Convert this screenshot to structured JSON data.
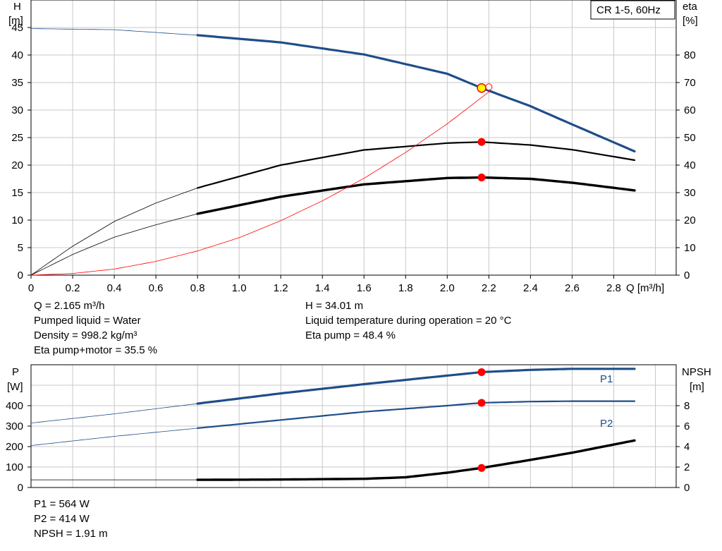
{
  "top_chart": {
    "title": "CR 1-5, 60Hz",
    "ylabel_left": [
      "H",
      "[m]"
    ],
    "ylabel_right": [
      "eta",
      "[%]"
    ],
    "xlabel": "Q [m³/h]",
    "x_ticks": [
      "0",
      "0.2",
      "0.4",
      "0.6",
      "0.8",
      "1.0",
      "1.2",
      "1.4",
      "1.6",
      "1.8",
      "2.0",
      "2.2",
      "2.4",
      "2.6",
      "2.8"
    ],
    "y_ticks_left": [
      "0",
      "5",
      "10",
      "15",
      "20",
      "25",
      "30",
      "35",
      "40",
      "45"
    ],
    "y_ticks_right": [
      "0",
      "10",
      "20",
      "30",
      "40",
      "50",
      "60",
      "70",
      "80"
    ]
  },
  "top_info": {
    "left": [
      "Q = 2.165 m³/h",
      "Pumped liquid = Water",
      "Density = 998.2 kg/m³",
      "Eta pump+motor = 35.5 %"
    ],
    "right": [
      "H = 34.01 m",
      "Liquid temperature during operation = 20 °C",
      "Eta pump = 48.4 %"
    ]
  },
  "bottom_chart": {
    "ylabel_left": [
      "P",
      "[W]"
    ],
    "ylabel_right": [
      "NPSH",
      "[m]"
    ],
    "y_ticks_left": [
      "0",
      "100",
      "200",
      "300",
      "400"
    ],
    "y_ticks_right": [
      "0",
      "2",
      "4",
      "6",
      "8"
    ],
    "series_labels": [
      "P1",
      "P2"
    ]
  },
  "bottom_info": [
    "P1 = 564 W",
    "P2 = 414 W",
    "NPSH = 1.91 m"
  ],
  "colors": {
    "blue": "#1f4e89",
    "black": "#000000",
    "red": "#ff0000",
    "grid": "#c8c8c8",
    "marker_yellow": "#ffff00"
  },
  "chart_data": [
    {
      "type": "line",
      "title": "CR 1-5, 60Hz",
      "xlabel": "Q [m³/h]",
      "xlim": [
        0,
        3.1
      ],
      "ylim_left": [
        0,
        50
      ],
      "ylim_right": [
        0,
        100
      ],
      "grid": true,
      "duty_point": {
        "x": 2.165,
        "H": 34.01,
        "eta_pump": 48.4,
        "eta_pump_motor": 35.5
      },
      "series": [
        {
          "id": "H",
          "axis": "left",
          "color": "blue",
          "operating_range": [
            0.8,
            2.9
          ],
          "x": [
            0,
            0.4,
            0.8,
            1.2,
            1.6,
            2.0,
            2.165,
            2.4,
            2.6,
            2.9
          ],
          "values": [
            44.8,
            44.6,
            43.6,
            42.3,
            40.1,
            36.6,
            34.01,
            30.7,
            27.4,
            22.5
          ]
        },
        {
          "id": "eta_pump",
          "axis": "right",
          "color": "black",
          "operating_range": [
            0.8,
            2.9
          ],
          "x": [
            0,
            0.2,
            0.4,
            0.6,
            0.8,
            1.2,
            1.6,
            2.0,
            2.165,
            2.4,
            2.6,
            2.9
          ],
          "values": [
            0,
            10.5,
            19.5,
            26.2,
            31.7,
            40.0,
            45.5,
            48.0,
            48.4,
            47.3,
            45.6,
            41.8
          ]
        },
        {
          "id": "eta_pump_motor",
          "axis": "right",
          "color": "black",
          "operating_range": [
            0.8,
            2.9
          ],
          "x": [
            0,
            0.2,
            0.4,
            0.6,
            0.8,
            1.2,
            1.6,
            2.0,
            2.165,
            2.4,
            2.6,
            2.9
          ],
          "values": [
            0,
            7.5,
            13.8,
            18.3,
            22.3,
            28.5,
            33.0,
            35.3,
            35.5,
            35.0,
            33.6,
            30.8
          ]
        },
        {
          "id": "system_curve",
          "axis": "left",
          "color": "red",
          "operating_range": [
            0,
            2.2
          ],
          "x": [
            0,
            0.2,
            0.4,
            0.6,
            0.8,
            1.0,
            1.2,
            1.4,
            1.6,
            1.8,
            2.0,
            2.2
          ],
          "values": [
            0,
            0.3,
            1.1,
            2.5,
            4.4,
            6.8,
            9.9,
            13.5,
            17.6,
            22.3,
            27.5,
            33.3
          ]
        }
      ]
    },
    {
      "type": "line",
      "xlim": [
        0,
        3.1
      ],
      "ylim_left": [
        0,
        600
      ],
      "ylim_right": [
        0,
        12
      ],
      "grid": true,
      "duty_point": {
        "x": 2.165,
        "P1": 564,
        "P2": 414,
        "NPSH": 1.91
      },
      "series": [
        {
          "id": "P1",
          "name": "P1",
          "axis": "left",
          "color": "blue",
          "operating_range": [
            0.8,
            2.9
          ],
          "x": [
            0,
            0.4,
            0.8,
            1.2,
            1.6,
            2.0,
            2.165,
            2.4,
            2.6,
            2.9
          ],
          "values": [
            315,
            360,
            410,
            460,
            505,
            547,
            564,
            575,
            580,
            580
          ]
        },
        {
          "id": "P2",
          "name": "P2",
          "axis": "left",
          "color": "blue",
          "operating_range": [
            0.8,
            2.9
          ],
          "x": [
            0,
            0.4,
            0.8,
            1.2,
            1.6,
            2.0,
            2.165,
            2.4,
            2.6,
            2.9
          ],
          "values": [
            205,
            250,
            290,
            330,
            370,
            400,
            414,
            420,
            422,
            422
          ]
        },
        {
          "id": "NPSH",
          "axis": "right",
          "color": "black",
          "operating_range": [
            0.8,
            2.9
          ],
          "x": [
            0,
            0.4,
            0.8,
            1.2,
            1.6,
            1.8,
            2.0,
            2.165,
            2.4,
            2.6,
            2.9
          ],
          "values": [
            0.75,
            0.75,
            0.75,
            0.78,
            0.85,
            1.0,
            1.45,
            1.91,
            2.7,
            3.4,
            4.6
          ]
        }
      ]
    }
  ]
}
